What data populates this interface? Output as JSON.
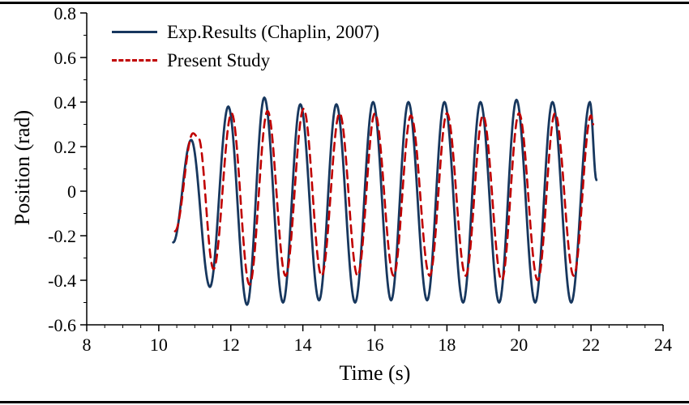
{
  "figure": {
    "background": "#ffffff",
    "border_color": "#000000"
  },
  "chart_data": {
    "type": "line",
    "title": "",
    "xlabel": "Time (s)",
    "ylabel": "Position (rad)",
    "xlim": [
      8,
      24
    ],
    "ylim": [
      -0.6,
      0.8
    ],
    "grid": false,
    "legend_position": "top-left",
    "x_major_ticks": [
      8,
      10,
      12,
      14,
      16,
      18,
      20,
      22,
      24
    ],
    "x_tick_labels": [
      "8",
      "10",
      "12",
      "14",
      "16",
      "18",
      "20",
      "22",
      "24"
    ],
    "x_minor_step": 0.5,
    "y_major_ticks": [
      -0.6,
      -0.4,
      -0.2,
      0,
      0.2,
      0.4,
      0.6,
      0.8
    ],
    "y_tick_labels": [
      "-0.6",
      "-0.4",
      "-0.2",
      "0",
      "0.2",
      "0.4",
      "0.6",
      "0.8"
    ],
    "y_minor_step": 0.1,
    "series": [
      {
        "id": "exp-results",
        "name": "Exp.Results (Chaplin, 2007)",
        "color": "#17375e",
        "style": "solid",
        "width": 2.8,
        "points_are": "extrema",
        "points": [
          [
            10.4,
            -0.23
          ],
          [
            10.9,
            0.23
          ],
          [
            11.42,
            -0.43
          ],
          [
            11.93,
            0.38
          ],
          [
            12.45,
            -0.51
          ],
          [
            12.93,
            0.42
          ],
          [
            13.45,
            -0.5
          ],
          [
            13.93,
            0.39
          ],
          [
            14.45,
            -0.49
          ],
          [
            14.93,
            0.39
          ],
          [
            15.45,
            -0.5
          ],
          [
            15.95,
            0.4
          ],
          [
            16.45,
            -0.49
          ],
          [
            16.93,
            0.4
          ],
          [
            17.45,
            -0.49
          ],
          [
            17.93,
            0.4
          ],
          [
            18.45,
            -0.5
          ],
          [
            18.93,
            0.4
          ],
          [
            19.45,
            -0.5
          ],
          [
            19.93,
            0.41
          ],
          [
            20.45,
            -0.5
          ],
          [
            20.93,
            0.4
          ],
          [
            21.45,
            -0.5
          ],
          [
            21.97,
            0.4
          ],
          [
            22.15,
            0.05
          ]
        ]
      },
      {
        "id": "present-study",
        "name": "Present Study",
        "color": "#c00000",
        "style": "dashed",
        "dash": [
          10,
          7
        ],
        "width": 2.6,
        "points_are": "extrema",
        "points": [
          [
            10.45,
            -0.18
          ],
          [
            10.95,
            0.26
          ],
          [
            11.1,
            0.24
          ],
          [
            11.52,
            -0.35
          ],
          [
            12.02,
            0.35
          ],
          [
            12.52,
            -0.42
          ],
          [
            13.02,
            0.36
          ],
          [
            13.52,
            -0.38
          ],
          [
            14.02,
            0.37
          ],
          [
            14.52,
            -0.38
          ],
          [
            15.02,
            0.35
          ],
          [
            15.52,
            -0.38
          ],
          [
            16.0,
            0.35
          ],
          [
            16.52,
            -0.38
          ],
          [
            17.0,
            0.34
          ],
          [
            17.52,
            -0.38
          ],
          [
            18.0,
            0.35
          ],
          [
            18.52,
            -0.38
          ],
          [
            19.0,
            0.34
          ],
          [
            19.52,
            -0.4
          ],
          [
            20.0,
            0.35
          ],
          [
            20.52,
            -0.4
          ],
          [
            21.0,
            0.35
          ],
          [
            21.52,
            -0.38
          ],
          [
            22.0,
            0.34
          ],
          [
            22.06,
            0.3
          ]
        ]
      }
    ]
  }
}
